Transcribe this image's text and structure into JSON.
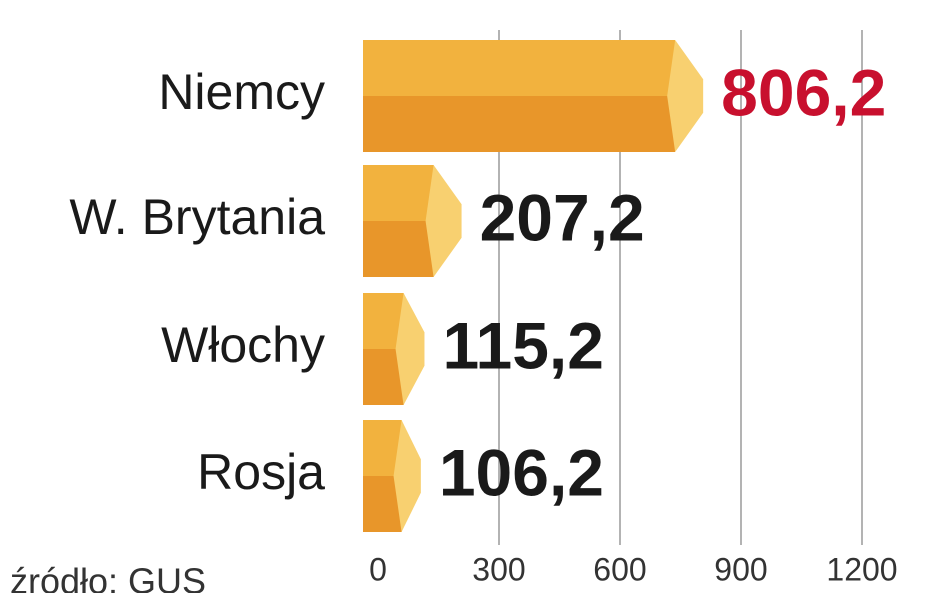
{
  "chart_data": {
    "type": "hbar",
    "categories": [
      "Niemcy",
      "W. Brytania",
      "Włochy",
      "Rosja"
    ],
    "values": [
      806.2,
      207.2,
      115.2,
      106.2
    ],
    "value_labels": [
      "806,2",
      "207,2",
      "115,2",
      "106,2"
    ],
    "value_label_colors": [
      "#c8102e",
      "#1a1a1a",
      "#1a1a1a",
      "#1a1a1a"
    ],
    "colors": {
      "top": "#f2b23e",
      "bottom": "#e8962a",
      "cap": "#f8d070"
    },
    "xlim": [
      0,
      1200
    ],
    "xticks": [
      0,
      300,
      600,
      900,
      1200
    ],
    "grid": true,
    "source": "źródło: GUS"
  }
}
